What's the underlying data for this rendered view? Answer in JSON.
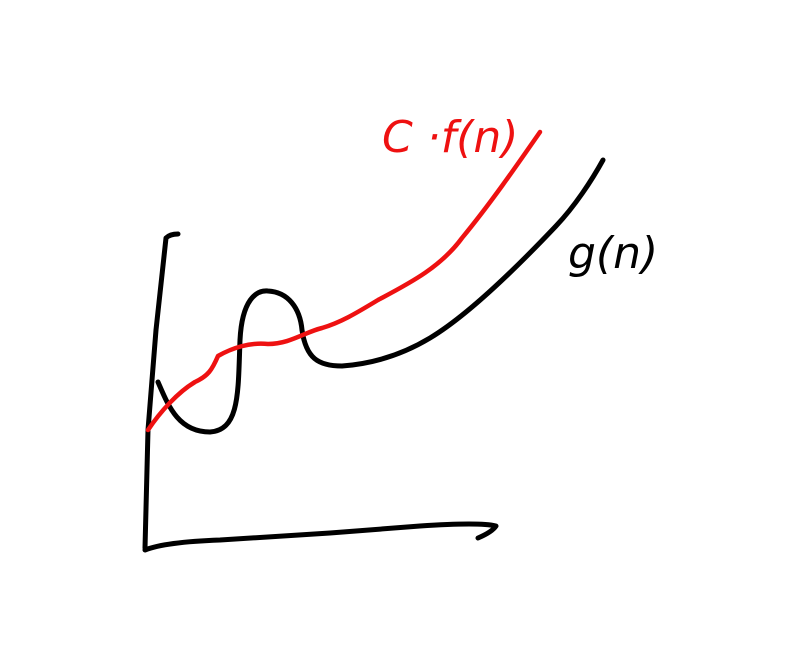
{
  "labels": {
    "red_curve": "C ·f(n)",
    "black_curve": "g(n)"
  },
  "colors": {
    "red_curve": "#ee1111",
    "black_curve": "#000000",
    "background": "#ffffff"
  }
}
